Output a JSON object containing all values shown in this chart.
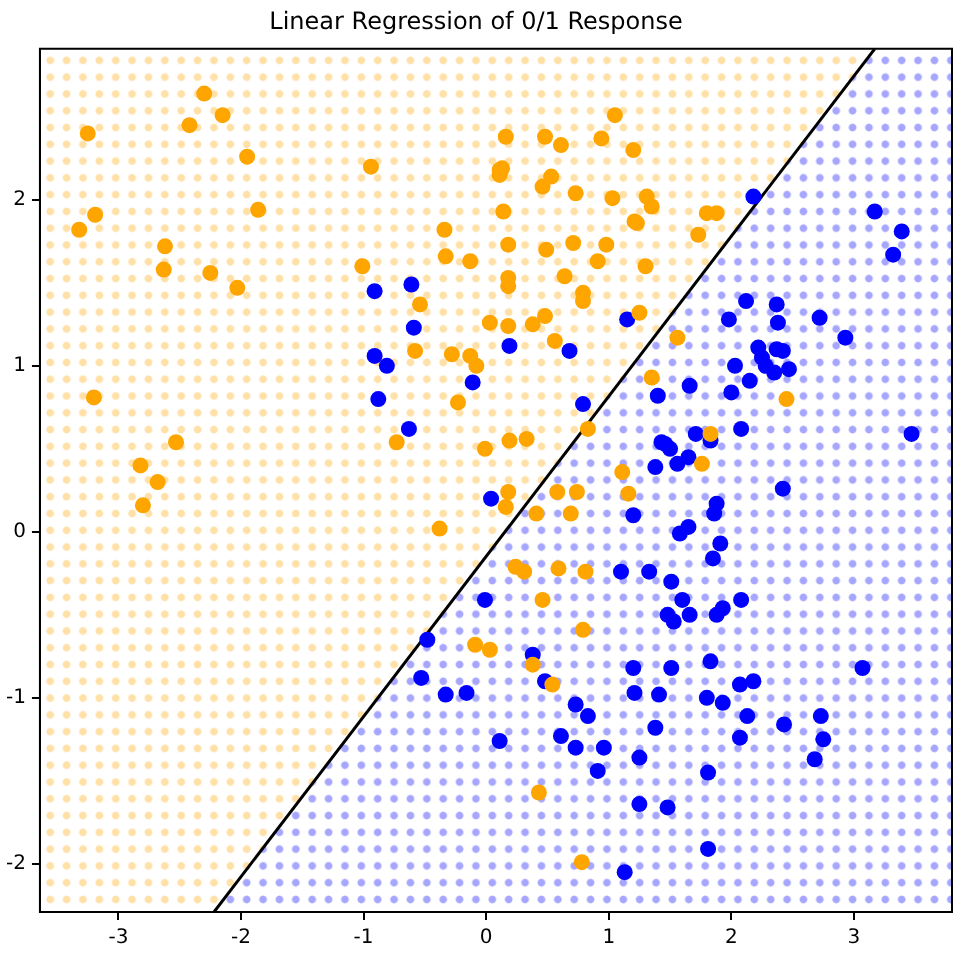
{
  "chart_data": {
    "type": "scatter",
    "title": "Linear Regression of 0/1 Response",
    "xlim": [
      -3.64,
      3.8
    ],
    "ylim": [
      -2.29,
      2.91
    ],
    "xticks": [
      -3,
      -2,
      -1,
      0,
      1,
      2,
      3
    ],
    "yticks": [
      -2,
      -1,
      0,
      1,
      2
    ],
    "grid": false,
    "legend": false,
    "series": [
      {
        "type": "line",
        "color": "#000000",
        "x": [
          -2.22,
          3.17
        ],
        "values": [
          -2.29,
          2.91
        ]
      },
      {
        "color": "#ffa500",
        "x": [
          -2.3,
          -2.15,
          -2.42,
          -3.25,
          -1.95,
          -0.94,
          0.11,
          -1.86,
          -3.19,
          -3.32,
          -0.34,
          -2.62,
          -2.63,
          -0.33,
          -0.13,
          -2.25,
          -2.03,
          -1.01,
          -0.54,
          0.03,
          -0.58,
          -0.28,
          -0.13,
          -0.08,
          -0.23,
          -3.2,
          -2.53,
          -0.73,
          -0.01,
          -2.82,
          -2.68,
          -2.8,
          -0.38,
          -0.09,
          0.03,
          1.05,
          0.16,
          0.48,
          0.61,
          0.94,
          1.2,
          0.13,
          0.11,
          0.53,
          0.46,
          0.73,
          1.03,
          1.31,
          1.35,
          0.14,
          1.21,
          1.23,
          1.8,
          1.88,
          1.73,
          0.18,
          0.49,
          0.71,
          0.98,
          0.91,
          1.3,
          0.18,
          0.18,
          0.64,
          0.79,
          0.79,
          0.18,
          0.38,
          0.48,
          1.25,
          0.56,
          1.56,
          1.35,
          2.45,
          0.83,
          0.19,
          0.33,
          1.83,
          1.76,
          1.11,
          0.18,
          0.58,
          0.74,
          1.16,
          0.69,
          0.41,
          0.16,
          0.24,
          0.31,
          0.59,
          0.81,
          0.46,
          0.79,
          0.38,
          0.54,
          0.43,
          0.78
        ],
        "values": [
          2.64,
          2.51,
          2.45,
          2.4,
          2.26,
          2.2,
          2.18,
          1.94,
          1.91,
          1.82,
          1.82,
          1.72,
          1.58,
          1.66,
          1.63,
          1.56,
          1.47,
          1.6,
          1.37,
          1.26,
          1.09,
          1.07,
          1.06,
          1.0,
          0.78,
          0.81,
          0.54,
          0.54,
          0.5,
          0.4,
          0.3,
          0.16,
          0.02,
          -0.68,
          -0.71,
          2.51,
          2.38,
          2.38,
          2.33,
          2.37,
          2.3,
          2.19,
          2.15,
          2.14,
          2.08,
          2.04,
          2.01,
          2.02,
          1.96,
          1.93,
          1.87,
          1.86,
          1.92,
          1.92,
          1.79,
          1.73,
          1.7,
          1.74,
          1.73,
          1.63,
          1.6,
          1.53,
          1.48,
          1.54,
          1.44,
          1.39,
          1.24,
          1.25,
          1.3,
          1.32,
          1.15,
          1.17,
          0.93,
          0.8,
          0.62,
          0.55,
          0.56,
          0.59,
          0.41,
          0.36,
          0.24,
          0.24,
          0.24,
          0.23,
          0.11,
          0.11,
          0.15,
          -0.21,
          -0.24,
          -0.22,
          -0.24,
          -0.41,
          -0.59,
          -0.8,
          -0.92,
          -1.57,
          -1.99
        ]
      },
      {
        "color": "#0000ff",
        "x": [
          -0.61,
          -0.91,
          -0.59,
          -0.91,
          -0.81,
          -0.11,
          -0.88,
          -0.63,
          2.18,
          3.17,
          3.39,
          3.32,
          0.19,
          0.68,
          1.15,
          2.12,
          2.37,
          1.98,
          2.38,
          2.72,
          2.93,
          2.22,
          2.37,
          2.42,
          2.25,
          2.28,
          2.35,
          2.47,
          2.03,
          2.15,
          2.0,
          1.66,
          1.4,
          0.79,
          2.08,
          1.71,
          1.83,
          1.43,
          1.5,
          1.46,
          1.65,
          1.56,
          1.38,
          3.47,
          0.04,
          -0.01,
          -0.48,
          -0.53,
          -0.33,
          -0.16,
          0.11,
          2.42,
          1.2,
          1.88,
          1.86,
          1.58,
          1.65,
          1.91,
          1.85,
          1.1,
          1.33,
          1.51,
          1.6,
          2.08,
          1.93,
          1.88,
          1.66,
          1.48,
          1.53,
          0.38,
          0.48,
          1.2,
          1.51,
          1.83,
          3.07,
          2.07,
          2.18,
          1.21,
          1.41,
          1.8,
          1.93,
          0.73,
          0.83,
          2.13,
          2.73,
          2.43,
          1.38,
          0.61,
          0.73,
          0.96,
          2.07,
          2.75,
          2.68,
          1.25,
          0.91,
          1.81,
          1.25,
          1.48,
          1.81,
          1.13
        ],
        "values": [
          1.49,
          1.45,
          1.23,
          1.06,
          1.0,
          0.9,
          0.8,
          0.62,
          2.02,
          1.93,
          1.81,
          1.67,
          1.12,
          1.09,
          1.28,
          1.39,
          1.37,
          1.28,
          1.26,
          1.29,
          1.17,
          1.11,
          1.1,
          1.09,
          1.05,
          1.0,
          0.96,
          0.98,
          1.0,
          0.91,
          0.84,
          0.88,
          0.82,
          0.77,
          0.62,
          0.59,
          0.55,
          0.54,
          0.5,
          0.53,
          0.45,
          0.41,
          0.39,
          0.59,
          0.2,
          -0.41,
          -0.65,
          -0.88,
          -0.98,
          -0.97,
          -1.26,
          0.26,
          0.1,
          0.17,
          0.11,
          -0.01,
          0.03,
          -0.07,
          -0.16,
          -0.24,
          -0.24,
          -0.3,
          -0.41,
          -0.41,
          -0.46,
          -0.5,
          -0.5,
          -0.5,
          -0.54,
          -0.74,
          -0.9,
          -0.82,
          -0.82,
          -0.78,
          -0.82,
          -0.92,
          -0.9,
          -0.97,
          -0.98,
          -1.0,
          -1.03,
          -1.04,
          -1.11,
          -1.11,
          -1.11,
          -1.16,
          -1.18,
          -1.23,
          -1.3,
          -1.3,
          -1.24,
          -1.25,
          -1.37,
          -1.36,
          -1.44,
          -1.45,
          -1.64,
          -1.66,
          -1.91,
          -2.05
        ]
      }
    ]
  }
}
